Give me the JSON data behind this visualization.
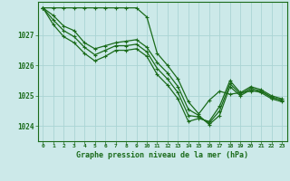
{
  "title": "Graphe pression niveau de la mer (hPa)",
  "xlabel_hours": [
    0,
    1,
    2,
    3,
    4,
    5,
    6,
    7,
    8,
    9,
    10,
    11,
    12,
    13,
    14,
    15,
    16,
    17,
    18,
    19,
    20,
    21,
    22,
    23
  ],
  "ylim": [
    1023.5,
    1028.1
  ],
  "yticks": [
    1024,
    1025,
    1026,
    1027
  ],
  "background_color": "#cce9e9",
  "grid_color": "#aad4d4",
  "line_color": "#1a6b1a",
  "lines": [
    [
      1027.9,
      1027.9,
      1027.9,
      1027.9,
      1027.9,
      1027.9,
      1027.9,
      1027.9,
      1027.9,
      1027.9,
      1027.6,
      1026.4,
      1026.0,
      1025.55,
      1024.8,
      1024.4,
      1024.85,
      1025.15,
      1025.05,
      1025.1,
      1025.15,
      1025.15,
      1024.95,
      1024.85
    ],
    [
      1027.9,
      1027.65,
      1027.3,
      1027.15,
      1026.75,
      1026.55,
      1026.65,
      1026.75,
      1026.8,
      1026.85,
      1026.6,
      1026.1,
      1025.75,
      1025.3,
      1024.55,
      1024.35,
      1024.05,
      1024.35,
      1025.3,
      1025.0,
      1025.2,
      1025.1,
      1024.9,
      1024.8
    ],
    [
      1027.9,
      1027.5,
      1027.15,
      1026.95,
      1026.6,
      1026.35,
      1026.5,
      1026.65,
      1026.65,
      1026.7,
      1026.45,
      1025.9,
      1025.55,
      1025.1,
      1024.35,
      1024.3,
      1024.1,
      1024.5,
      1025.4,
      1025.05,
      1025.25,
      1025.15,
      1024.95,
      1024.85
    ],
    [
      1027.9,
      1027.35,
      1026.95,
      1026.75,
      1026.4,
      1026.15,
      1026.3,
      1026.5,
      1026.5,
      1026.55,
      1026.3,
      1025.7,
      1025.35,
      1024.9,
      1024.15,
      1024.25,
      1024.15,
      1024.65,
      1025.5,
      1025.1,
      1025.3,
      1025.2,
      1025.0,
      1024.9
    ]
  ]
}
